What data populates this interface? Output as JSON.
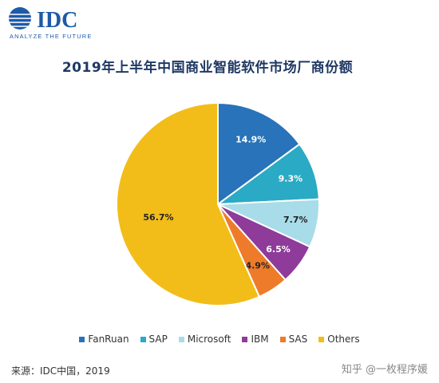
{
  "logo": {
    "text": "IDC",
    "tagline": "ANALYZE THE FUTURE",
    "color": "#1d5aa8"
  },
  "footer": {
    "source": "来源：IDC中国，2019",
    "watermark": "知乎 @一枚程序媛"
  },
  "chart_data": {
    "type": "pie",
    "title": "2019年上半年中国商业智能软件市场厂商份额",
    "legend_position": "bottom",
    "slices": [
      {
        "label": "FanRuan",
        "value": 14.9,
        "display": "14.9%",
        "color": "#2873b9"
      },
      {
        "label": "SAP",
        "value": 9.3,
        "display": "9.3%",
        "color": "#2aaac4"
      },
      {
        "label": "Microsoft",
        "value": 7.7,
        "display": "7.7%",
        "color": "#a8dce8"
      },
      {
        "label": "IBM",
        "value": 6.5,
        "display": "6.5%",
        "color": "#8e3b9a"
      },
      {
        "label": "SAS",
        "value": 4.9,
        "display": "4.9%",
        "color": "#ee7b2a"
      },
      {
        "label": "Others",
        "value": 56.7,
        "display": "56.7%",
        "color": "#f2bd18"
      }
    ]
  }
}
